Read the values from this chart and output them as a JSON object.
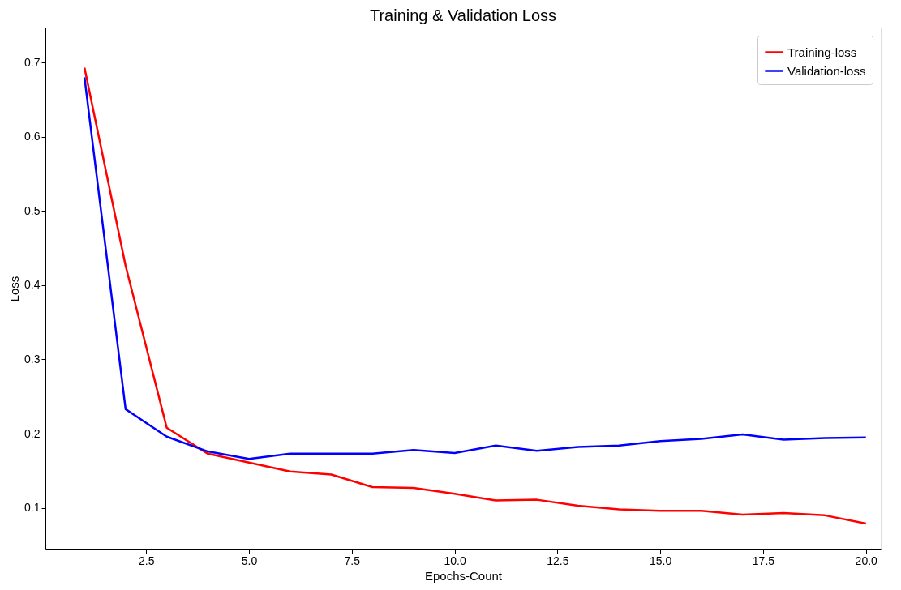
{
  "chart_data": {
    "type": "line",
    "title": "Training & Validation Loss",
    "xlabel": "Epochs-Count",
    "ylabel": "Loss",
    "x": [
      1,
      2,
      3,
      4,
      5,
      6,
      7,
      8,
      9,
      10,
      11,
      12,
      13,
      14,
      15,
      16,
      17,
      18,
      19,
      20
    ],
    "series": [
      {
        "name": "Training-loss",
        "color": "#ff0000",
        "values": [
          0.693,
          0.426,
          0.208,
          0.173,
          0.161,
          0.149,
          0.145,
          0.128,
          0.127,
          0.119,
          0.11,
          0.111,
          0.103,
          0.098,
          0.096,
          0.096,
          0.091,
          0.093,
          0.09,
          0.079
        ]
      },
      {
        "name": "Validation-loss",
        "color": "#0000ff",
        "values": [
          0.68,
          0.233,
          0.196,
          0.176,
          0.166,
          0.173,
          0.173,
          0.173,
          0.178,
          0.174,
          0.184,
          0.177,
          0.182,
          0.184,
          0.19,
          0.193,
          0.199,
          0.192,
          0.194,
          0.195
        ]
      }
    ],
    "xlim": [
      0.05,
      20.36
    ],
    "ylim": [
      0.044,
      0.747
    ],
    "xticks": [
      2.5,
      {
        "value": 5,
        "label": "5.0"
      },
      7.5,
      {
        "value": 10,
        "label": "10.0"
      },
      12.5,
      {
        "value": 15,
        "label": "15.0"
      },
      17.5,
      {
        "value": 20,
        "label": "20.0"
      }
    ],
    "yticks": [
      0.1,
      0.2,
      0.3,
      0.4,
      0.5,
      0.6,
      0.7
    ],
    "grid": false,
    "legend": "top right",
    "marker": "none",
    "line_style": "solid"
  }
}
